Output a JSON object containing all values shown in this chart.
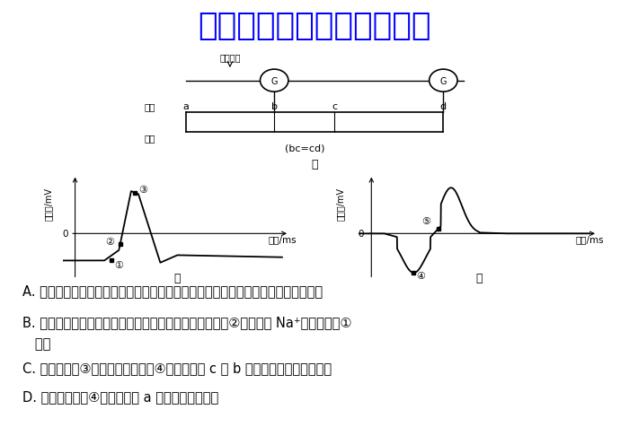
{
  "title_watermark": "微信公众号关注：趣找答案",
  "title_color": "#0000FF",
  "title_fontsize": 26,
  "bg_color": "#FFFFFF",
  "diagram_label": "甲",
  "diagram_sublabel_left": "乙",
  "diagram_sublabel_right": "丙",
  "ylabel_text": "膜电位/mV",
  "xlabel_text": "时间/ms",
  "nerve_label_1": "神经",
  "nerve_label_2": "纤维",
  "bc_cd_label": "(bc=cd)",
  "option_A": "A. 由电流表１记录得到的电位变化曲线如图丙所示，说明电流表发生两次相反的偏转",
  "option_B": "B. 图乙曲线是一开始以膜外电势为０来测得膜内电势，且②点时膜外 Na⁺内流速率比①",
  "option_B2": "   时大",
  "option_C": "C. 图乙曲线中③点对应图丙曲线中④点，兴奋从 c 到 b 点的传导过程不消耗能量",
  "option_D": "D. 图丙曲线处于④点时，图甲 a 处正处于静息状态",
  "text_color": "#000000",
  "text_fontsize": 10.5
}
